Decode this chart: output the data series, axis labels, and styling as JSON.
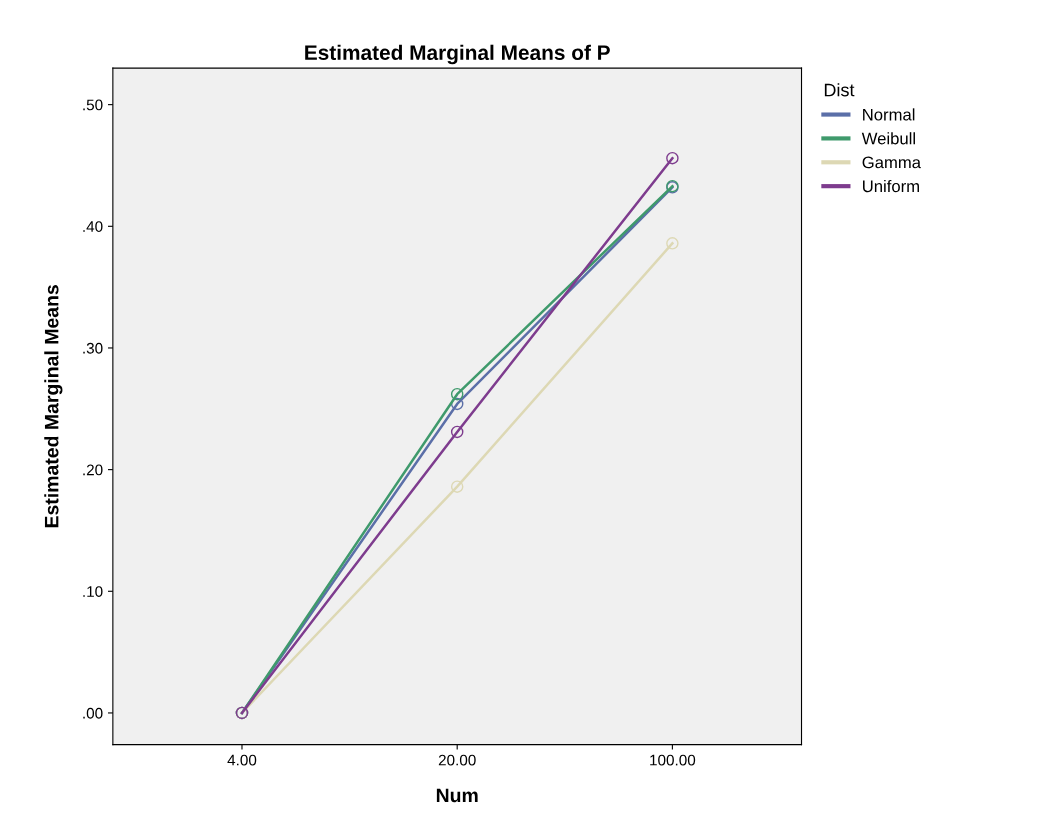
{
  "chart_data": {
    "type": "line",
    "title": "Estimated Marginal Means of P",
    "xlabel": "Num",
    "ylabel": "Estimated Marginal Means",
    "legend_title": "Dist",
    "legend": "right",
    "marker": "circle",
    "line_style": "solid",
    "grid": false,
    "categories": [
      "4.00",
      "20.00",
      "100.00"
    ],
    "ylim": [
      -0.026,
      0.53
    ],
    "yticks": [
      {
        "value": 0,
        "label": ".00"
      },
      {
        "value": 0.1,
        "label": ".10"
      },
      {
        "value": 0.2,
        "label": ".20"
      },
      {
        "value": 0.3,
        "label": ".30"
      },
      {
        "value": 0.4,
        "label": ".40"
      },
      {
        "value": 0.5,
        "label": ".50"
      }
    ],
    "series": [
      {
        "name": "Normal",
        "color": "#5b6fa8",
        "values": [
          0.0,
          0.254,
          0.432
        ]
      },
      {
        "name": "Weibull",
        "color": "#3f9a6c",
        "values": [
          0.0,
          0.262,
          0.433
        ]
      },
      {
        "name": "Gamma",
        "color": "#ddd8b4",
        "values": [
          0.0,
          0.186,
          0.386
        ]
      },
      {
        "name": "Uniform",
        "color": "#7e3c8e",
        "values": [
          0.0,
          0.231,
          0.456
        ]
      }
    ]
  }
}
